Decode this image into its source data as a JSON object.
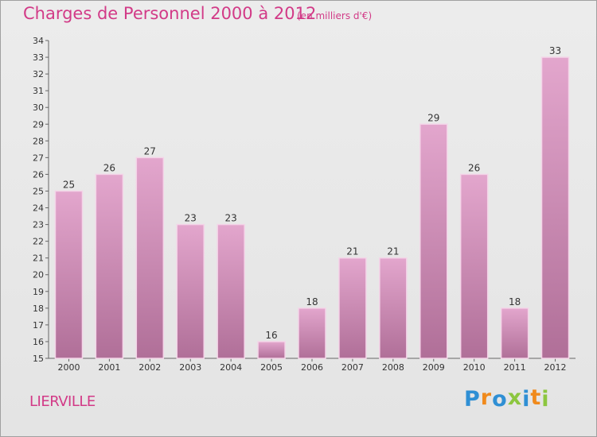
{
  "header": {
    "title": "Charges de Personnel 2000 à 2012",
    "subtitle": "(en milliers d'€)"
  },
  "location": "LIERVILLE",
  "logo": {
    "text": "Proxiti",
    "letters": [
      {
        "ch": "P",
        "color": "#2f8fd4"
      },
      {
        "ch": "r",
        "color": "#f08a1c"
      },
      {
        "ch": "o",
        "color": "#2f8fd4"
      },
      {
        "ch": "x",
        "color": "#8cc63f"
      },
      {
        "ch": "i",
        "color": "#2f8fd4"
      },
      {
        "ch": "t",
        "color": "#f08a1c"
      },
      {
        "ch": "i",
        "color": "#8cc63f"
      }
    ]
  },
  "colors": {
    "title": "#d23a87",
    "bar_top": "#e3a6cd",
    "bar_bottom": "#b06f98",
    "bar_edge": "#f4d4e8"
  },
  "chart_data": {
    "type": "bar",
    "categories": [
      "2000",
      "2001",
      "2002",
      "2003",
      "2004",
      "2005",
      "2006",
      "2007",
      "2008",
      "2009",
      "2010",
      "2011",
      "2012"
    ],
    "values": [
      25,
      26,
      27,
      23,
      23,
      16,
      18,
      21,
      21,
      29,
      26,
      18,
      33
    ],
    "title": "Charges de Personnel 2000 à 2012",
    "ylim": [
      15,
      34
    ],
    "yticks": [
      15,
      16,
      17,
      18,
      19,
      20,
      21,
      22,
      23,
      24,
      25,
      26,
      27,
      28,
      29,
      30,
      31,
      32,
      33,
      34
    ],
    "grid": false,
    "data_labels": true
  }
}
